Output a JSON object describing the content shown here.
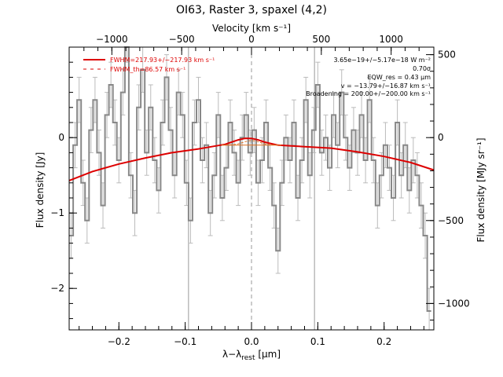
{
  "chart_data": {
    "type": "line",
    "title": "OI63, Raster 3, spaxel (4,2)",
    "top_axis_label": "Velocity [km s⁻¹]",
    "x_label": "λ−λ",
    "x_label_sub": "rest",
    "x_label_unit": " [μm]",
    "y_label": "Flux density [Jy]",
    "y2_label": "Flux density [MJy sr⁻¹]",
    "xlim": [
      -0.275,
      0.275
    ],
    "ylim": [
      -2.55,
      1.2
    ],
    "x_ticks": [
      -0.2,
      -0.1,
      0.0,
      0.1,
      0.2
    ],
    "x_tick_labels": [
      "−0.2",
      "−0.1",
      "0.0",
      "0.1",
      "0.2"
    ],
    "y_ticks": [
      -2,
      -1,
      0
    ],
    "y_tick_labels": [
      "−2",
      "−1",
      "0"
    ],
    "vel_ticks": [
      -1000,
      -500,
      0,
      500,
      1000
    ],
    "vel_tick_labels": [
      "−1000",
      "−500",
      "0",
      "500",
      "1000"
    ],
    "y2_ticks": [
      500,
      0,
      -500,
      -1000
    ],
    "y2_tick_labels": [
      "500",
      "0",
      "−500",
      "−1000"
    ],
    "vertical_lines": [
      -0.095,
      0.0,
      0.095
    ],
    "legend": [
      {
        "label": "FWHM=217.93+/−217.93 km s⁻¹",
        "style": "solid",
        "color": "#dd0000"
      },
      {
        "label": "FWHM_th=86.57 km s⁻¹",
        "style": "dashed",
        "color": "#dd0000"
      }
    ],
    "annotations": [
      "3.65e−19+/−5.17e−18 W m⁻²",
      "0.70σ",
      "EQW_res = 0.43 μm",
      "v = −13.79+/−16.87 km s⁻¹",
      "Broadening = 200.00+/−200.00 km s⁻¹"
    ],
    "series": [
      {
        "name": "spectrum",
        "color": "#888888",
        "style": "step",
        "x": [
          -0.272,
          -0.266,
          -0.26,
          -0.254,
          -0.248,
          -0.242,
          -0.236,
          -0.23,
          -0.224,
          -0.218,
          -0.212,
          -0.206,
          -0.2,
          -0.194,
          -0.188,
          -0.182,
          -0.176,
          -0.17,
          -0.164,
          -0.158,
          -0.152,
          -0.146,
          -0.14,
          -0.134,
          -0.128,
          -0.122,
          -0.116,
          -0.11,
          -0.104,
          -0.098,
          -0.092,
          -0.086,
          -0.08,
          -0.074,
          -0.068,
          -0.062,
          -0.056,
          -0.05,
          -0.044,
          -0.038,
          -0.032,
          -0.026,
          -0.02,
          -0.014,
          -0.008,
          -0.002,
          0.004,
          0.01,
          0.016,
          0.022,
          0.028,
          0.034,
          0.04,
          0.046,
          0.052,
          0.058,
          0.064,
          0.07,
          0.076,
          0.082,
          0.088,
          0.094,
          0.1,
          0.106,
          0.112,
          0.118,
          0.124,
          0.13,
          0.136,
          0.142,
          0.148,
          0.154,
          0.16,
          0.166,
          0.172,
          0.178,
          0.184,
          0.19,
          0.196,
          0.202,
          0.208,
          0.214,
          0.22,
          0.226,
          0.232,
          0.238,
          0.244,
          0.25,
          0.256,
          0.262,
          0.268
        ],
        "y": [
          -1.3,
          -0.1,
          0.5,
          -0.6,
          -1.1,
          0.1,
          0.5,
          -0.2,
          -0.9,
          0.3,
          0.7,
          0.2,
          -0.3,
          0.6,
          1.3,
          -0.5,
          -1.0,
          0.4,
          0.9,
          -0.2,
          0.4,
          -0.3,
          -0.7,
          0.2,
          0.8,
          0.1,
          -0.5,
          0.6,
          0.3,
          -0.6,
          -1.1,
          0.2,
          0.5,
          -0.3,
          -0.1,
          -1.0,
          -0.5,
          0.3,
          -0.8,
          -0.4,
          0.2,
          -0.2,
          -0.6,
          0.0,
          0.3,
          -0.2,
          0.1,
          -0.6,
          -0.3,
          0.2,
          -0.4,
          -0.9,
          -1.5,
          -0.6,
          0.0,
          -0.3,
          0.2,
          -0.8,
          -0.3,
          0.5,
          -0.5,
          0.1,
          0.7,
          -0.2,
          0.0,
          -0.4,
          0.3,
          -0.1,
          0.6,
          0.0,
          -0.4,
          0.1,
          -0.2,
          0.3,
          -0.3,
          0.5,
          -0.3,
          -0.9,
          -0.5,
          -0.1,
          -0.4,
          -0.8,
          0.2,
          -0.5,
          -0.1,
          -0.7,
          -0.3,
          -0.5,
          -0.9,
          -1.3,
          -2.3
        ],
        "error": 0.3
      },
      {
        "name": "fit",
        "color": "#dd0000",
        "style": "solid",
        "x": [
          -0.28,
          -0.24,
          -0.2,
          -0.16,
          -0.12,
          -0.08,
          -0.06,
          -0.04,
          -0.02,
          -0.01,
          0.0,
          0.01,
          0.02,
          0.04,
          0.06,
          0.08,
          0.12,
          0.16,
          0.2,
          0.24,
          0.28
        ],
        "y": [
          -0.57,
          -0.45,
          -0.35,
          -0.27,
          -0.2,
          -0.15,
          -0.12,
          -0.09,
          -0.03,
          -0.01,
          -0.01,
          -0.03,
          -0.06,
          -0.1,
          -0.11,
          -0.12,
          -0.14,
          -0.19,
          -0.25,
          -0.33,
          -0.43
        ]
      }
    ]
  }
}
